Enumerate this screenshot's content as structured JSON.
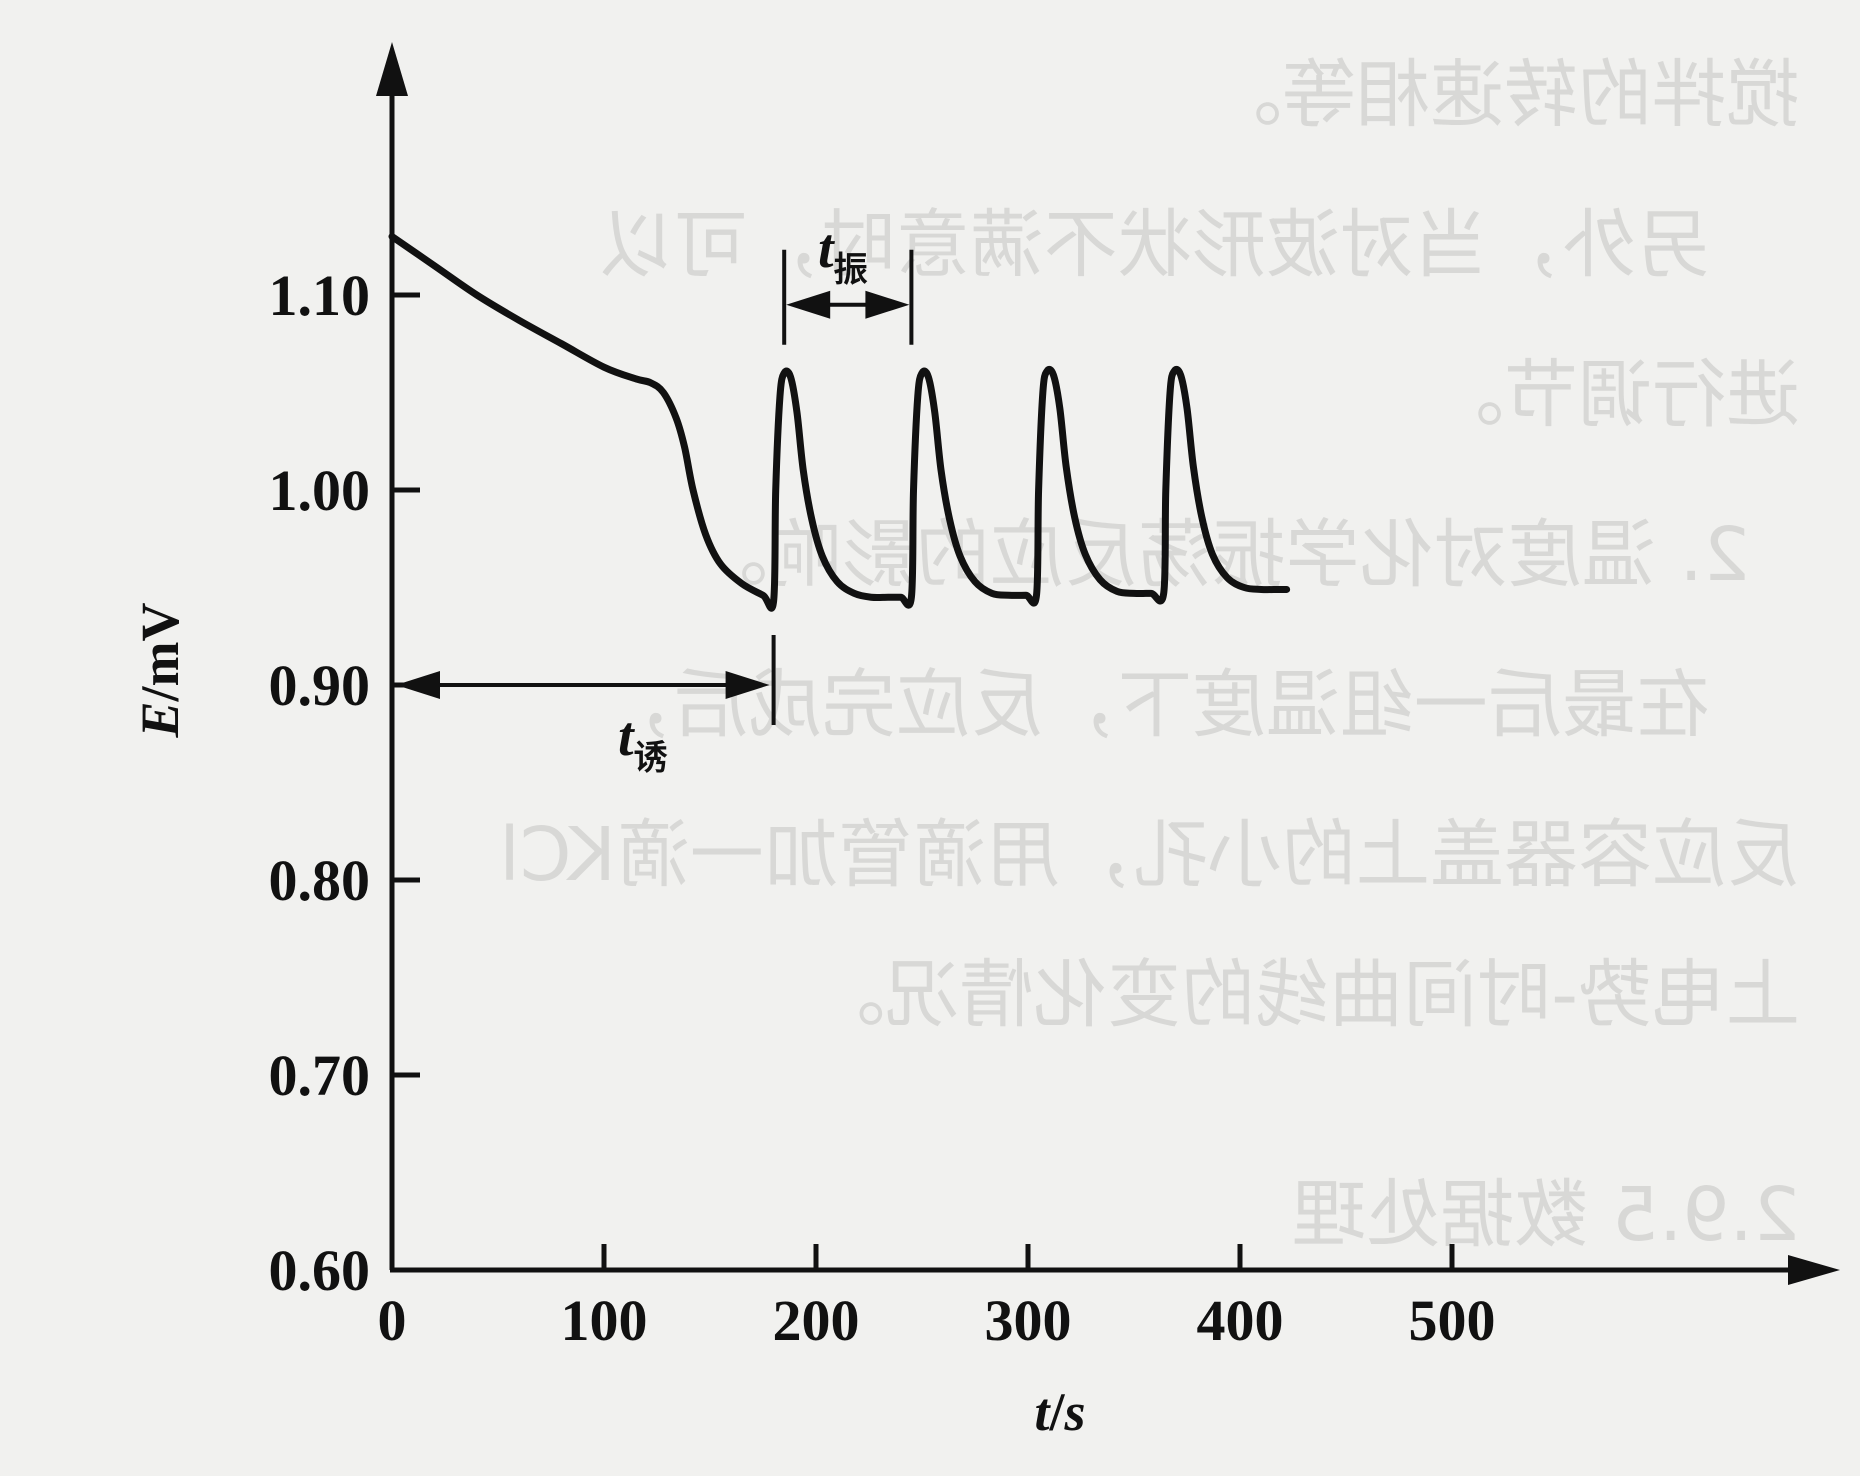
{
  "chart_data": {
    "type": "line",
    "xlabel_var": "t",
    "xlabel_unit": "s",
    "ylabel_var": "E",
    "ylabel_unit": "mV",
    "xlim": [
      0,
      500
    ],
    "ylim": [
      0.6,
      1.13
    ],
    "x_ticks": [
      "0",
      "100",
      "200",
      "300",
      "400",
      "500"
    ],
    "y_ticks": [
      "0.60",
      "0.70",
      "0.80",
      "0.90",
      "1.00",
      "1.10"
    ],
    "series": [
      {
        "x": [
          0,
          20,
          40,
          60,
          80,
          100,
          115,
          122,
          128,
          134,
          138,
          142,
          148,
          155,
          165,
          175,
          180,
          181,
          183,
          185,
          188,
          191,
          194,
          198,
          203,
          210,
          218,
          226,
          234,
          240,
          245,
          246,
          248,
          250,
          253,
          256,
          259,
          263,
          268,
          275,
          283,
          291,
          299,
          304,
          305,
          307,
          309,
          312,
          315,
          318,
          322,
          327,
          334,
          342,
          350,
          358,
          364,
          365,
          367,
          369,
          372,
          375,
          378,
          382,
          387,
          394,
          402,
          410,
          418,
          422
        ],
        "values": [
          1.13,
          1.115,
          1.1,
          1.087,
          1.075,
          1.063,
          1.057,
          1.055,
          1.05,
          1.037,
          1.022,
          1.0,
          0.977,
          0.962,
          0.952,
          0.946,
          0.943,
          1.0,
          1.048,
          1.06,
          1.058,
          1.04,
          1.01,
          0.985,
          0.966,
          0.953,
          0.947,
          0.945,
          0.945,
          0.945,
          0.945,
          1.0,
          1.048,
          1.06,
          1.058,
          1.04,
          1.01,
          0.985,
          0.966,
          0.953,
          0.947,
          0.946,
          0.946,
          0.946,
          1.0,
          1.05,
          1.061,
          1.059,
          1.042,
          1.012,
          0.986,
          0.967,
          0.954,
          0.948,
          0.947,
          0.947,
          0.947,
          1.0,
          1.05,
          1.061,
          1.059,
          1.042,
          1.012,
          0.986,
          0.967,
          0.955,
          0.95,
          0.949,
          0.949,
          0.949
        ]
      }
    ],
    "annotations": {
      "induction": {
        "var": "t",
        "sub": "诱",
        "x_start": 0,
        "x_end": 180,
        "y": 0.9
      },
      "oscillation": {
        "var": "t",
        "sub": "振",
        "x_start": 185,
        "x_end": 245,
        "y": 1.095
      }
    }
  },
  "background_text": [
    "搅拌的转速相等。",
    "另外，当对波形状不满意时，可以",
    "进行调节。",
    "2. 温度对化学振荡反应的影响。",
    "在最后一组温度下，反应完成后，",
    "反应容器盖上的小孔，用滴管加一滴KCl",
    "上电势-时间曲线的变化情况。",
    "2.9.5 数据处理"
  ]
}
